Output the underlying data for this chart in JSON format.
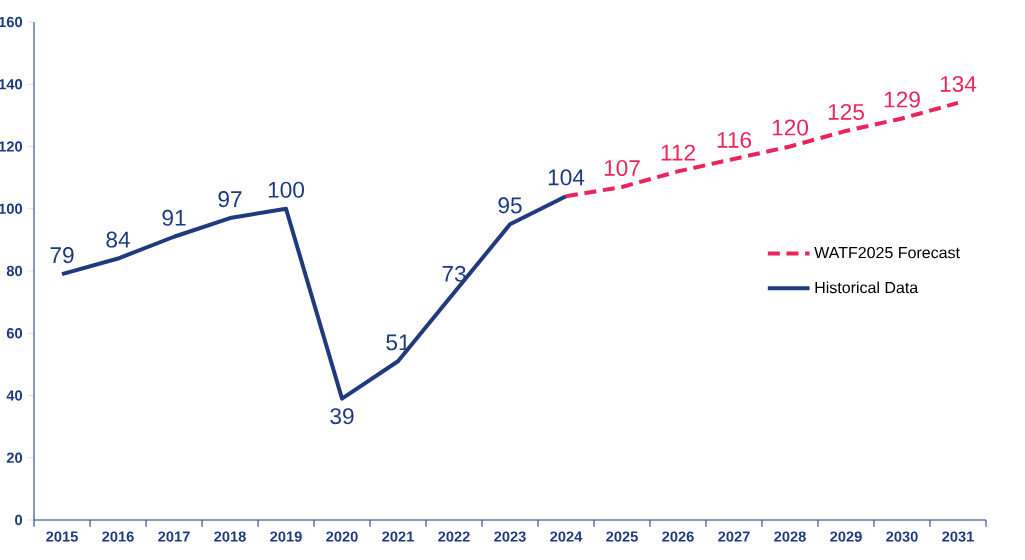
{
  "chart_data": {
    "type": "line",
    "categories": [
      "2015",
      "2016",
      "2017",
      "2018",
      "2019",
      "2020",
      "2021",
      "2022",
      "2023",
      "2024",
      "2025",
      "2026",
      "2027",
      "2028",
      "2029",
      "2030",
      "2031"
    ],
    "series": [
      {
        "name": "Historical Data",
        "color": "#1f3b7d",
        "line_style": "solid",
        "values": [
          79,
          84,
          91,
          97,
          100,
          39,
          51,
          73,
          95,
          104,
          null,
          null,
          null,
          null,
          null,
          null,
          null
        ],
        "value_labels": [
          "79",
          "84",
          "91",
          "97",
          "100",
          "39",
          "51",
          "73",
          "95",
          "104",
          null,
          null,
          null,
          null,
          null,
          null,
          null
        ]
      },
      {
        "name": "WATF2025 Forecast",
        "color": "#e8265a",
        "line_style": "dashed",
        "values": [
          null,
          null,
          null,
          null,
          null,
          null,
          null,
          null,
          null,
          104,
          107,
          112,
          116,
          120,
          125,
          129,
          134
        ],
        "value_labels": [
          null,
          null,
          null,
          null,
          null,
          null,
          null,
          null,
          null,
          null,
          "107",
          "112",
          "116",
          "120",
          "125",
          "129",
          "134"
        ]
      }
    ],
    "ylim": [
      0,
      160
    ],
    "yticks": [
      0,
      20,
      40,
      60,
      80,
      100,
      120,
      140,
      160
    ],
    "grid": false,
    "legend": "right",
    "marker": "none"
  }
}
